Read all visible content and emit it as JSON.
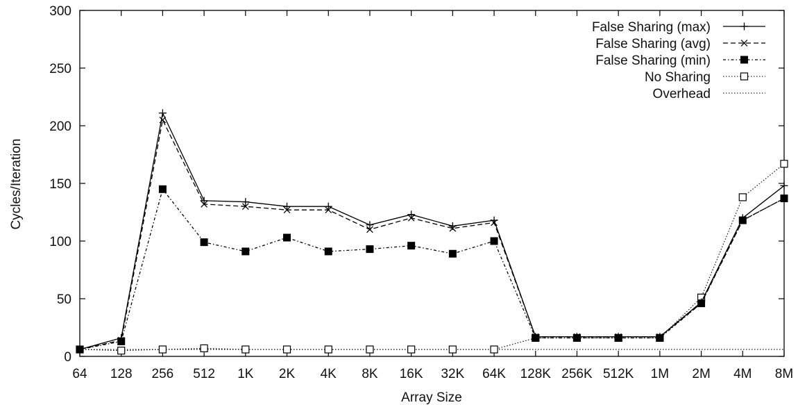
{
  "chart_data": {
    "type": "line",
    "title": "",
    "xlabel": "Array Size",
    "ylabel": "Cycles/Iteration",
    "ylim": [
      0,
      300
    ],
    "yticks": [
      0,
      50,
      100,
      150,
      200,
      250,
      300
    ],
    "grid": false,
    "legend_position": "top-right",
    "categories": [
      "64",
      "128",
      "256",
      "512",
      "1K",
      "2K",
      "4K",
      "8K",
      "16K",
      "32K",
      "64K",
      "128K",
      "256K",
      "512K",
      "1M",
      "2M",
      "4M",
      "8M"
    ],
    "series": [
      {
        "name": "False Sharing (max)",
        "line": "solid",
        "marker": "plus",
        "color": "#000000",
        "values": [
          6,
          16,
          211,
          135,
          134,
          130,
          130,
          114,
          123,
          113,
          118,
          17,
          17,
          17,
          17,
          47,
          120,
          148
        ]
      },
      {
        "name": "False Sharing (avg)",
        "line": "dashed",
        "marker": "cross",
        "color": "#000000",
        "values": [
          6,
          14,
          205,
          132,
          130,
          127,
          127,
          110,
          120,
          111,
          116,
          17,
          17,
          17,
          17,
          46,
          118,
          137
        ]
      },
      {
        "name": "False Sharing (min)",
        "line": "dash-dot",
        "marker": "filled-square",
        "color": "#000000",
        "values": [
          6,
          13,
          145,
          99,
          91,
          103,
          91,
          93,
          96,
          89,
          100,
          16,
          16,
          16,
          16,
          46,
          118,
          137
        ]
      },
      {
        "name": "No Sharing",
        "line": "dotted",
        "marker": "open-square",
        "color": "#000000",
        "values": [
          6,
          5,
          6,
          7,
          6,
          6,
          6,
          6,
          6,
          6,
          6,
          16,
          16,
          16,
          16,
          51,
          138,
          167
        ]
      },
      {
        "name": "Overhead",
        "line": "dotted",
        "marker": "none",
        "color": "#000000",
        "values": [
          6,
          6,
          6,
          6,
          6,
          6,
          6,
          6,
          6,
          6,
          6,
          6,
          6,
          6,
          6,
          6,
          6,
          6
        ]
      }
    ]
  }
}
